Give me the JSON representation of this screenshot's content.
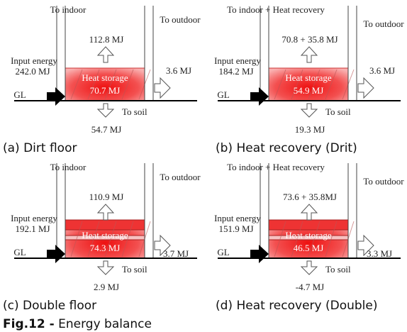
{
  "panels": [
    {
      "caption": "(a) Dirt floor",
      "to_indoor": "To indoor",
      "indoor_value": "112.8 MJ",
      "to_outdoor": "To outdoor",
      "outdoor_value": "3.6 MJ",
      "input_label": "Input energy",
      "input_value": "242.0 MJ",
      "storage_label": "Heat storage",
      "storage_value": "70.7 MJ",
      "gl": "GL",
      "to_soil": "To soil",
      "soil_value": "54.7 MJ"
    },
    {
      "caption": "(b) Heat recovery (Drit)",
      "to_indoor": "To indoor + Heat recovery",
      "indoor_value": "70.8 + 35.8 MJ",
      "to_outdoor": "To outdoor",
      "outdoor_value": "3.6 MJ",
      "input_label": "Input energy",
      "input_value": "184.2 MJ",
      "storage_label": "Heat storage",
      "storage_value": "54.9 MJ",
      "gl": "GL",
      "to_soil": "To soil",
      "soil_value": "19.3 MJ"
    },
    {
      "caption": "(c) Double floor",
      "to_indoor": "To indoor",
      "indoor_value": "110.9 MJ",
      "to_outdoor": "To outdoor",
      "outdoor_value": "3.7 MJ",
      "input_label": "Input energy",
      "input_value": "192.1 MJ",
      "storage_label": "Heat storage",
      "storage_value": "74.3 MJ",
      "gl": "GL",
      "to_soil": "To soil",
      "soil_value": "2.9 MJ"
    },
    {
      "caption": "(d) Heat recovery (Double)",
      "to_indoor": "To indoor + Heat recovery",
      "indoor_value": "73.6 + 35.8MJ",
      "to_outdoor": "To outdoor",
      "outdoor_value": "3.3 MJ",
      "input_label": "Input energy",
      "input_value": "151.9 MJ",
      "storage_label": "Heat storage",
      "storage_value": "46.5 MJ",
      "gl": "GL",
      "to_soil": "To soil",
      "soil_value": "-4.7 MJ"
    }
  ],
  "figure_caption": {
    "label": "Fig.12 -",
    "text": "Energy balance"
  }
}
